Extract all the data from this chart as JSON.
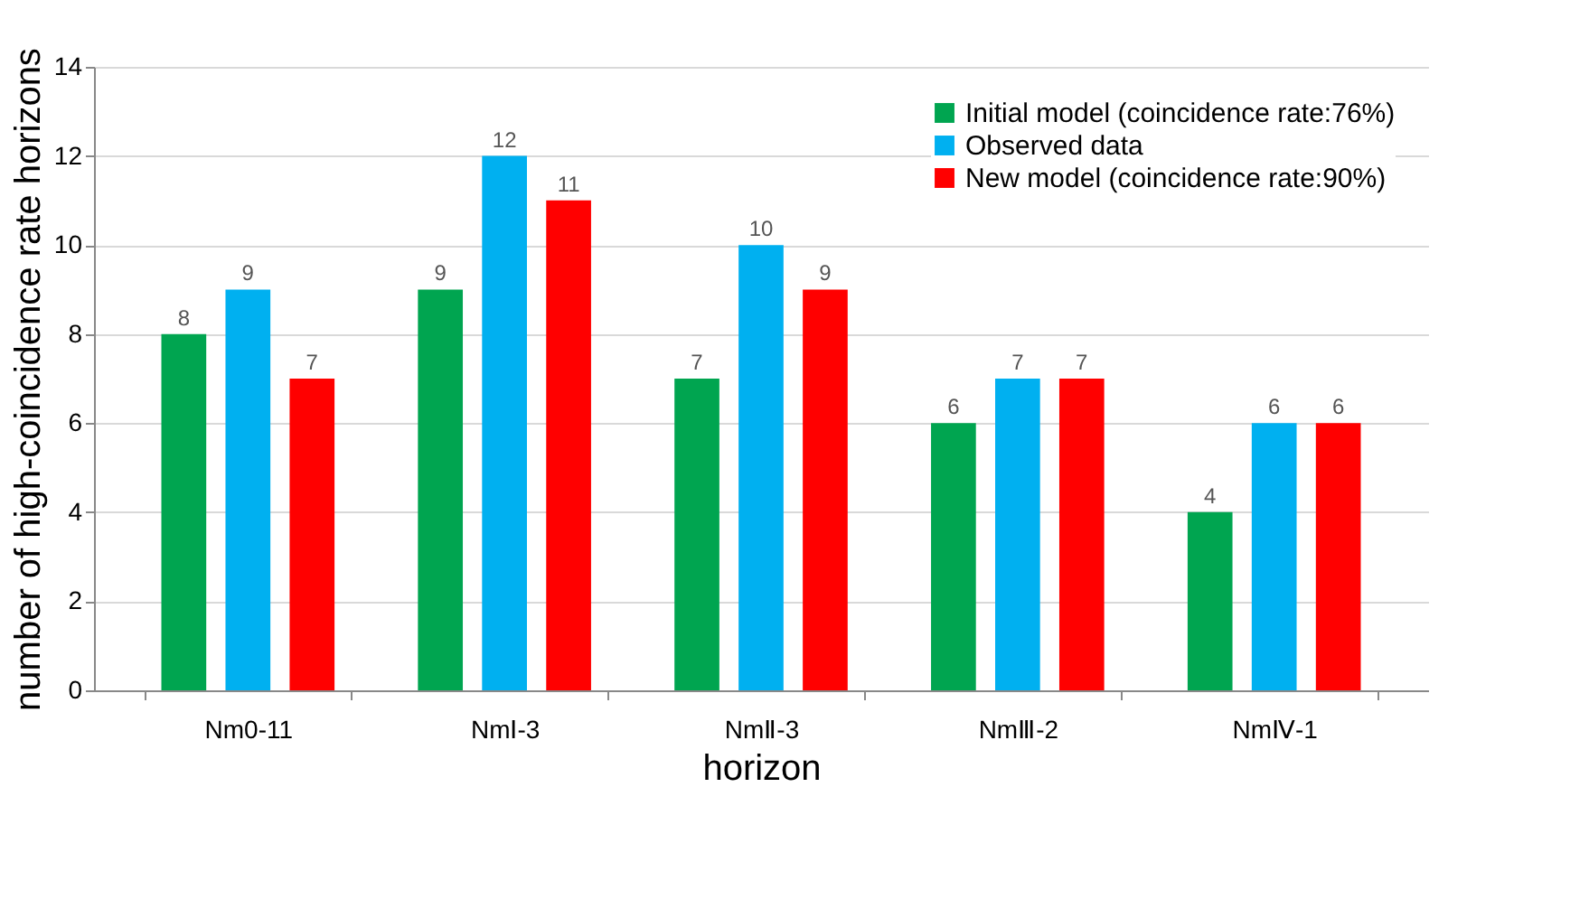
{
  "chart_data": {
    "type": "bar",
    "xlabel": "horizon",
    "ylabel": "number of high-coincidence rate horizons",
    "categories": [
      "Nm0-11",
      "NmⅠ-3",
      "NmⅡ-3",
      "NmⅢ-2",
      "NmⅣ-1"
    ],
    "series": [
      {
        "name": "Initial model (coincidence rate:76%)",
        "color": "#00a550",
        "values": [
          8,
          9,
          7,
          6,
          4
        ]
      },
      {
        "name": "Observed data",
        "color": "#00b0f0",
        "values": [
          9,
          12,
          10,
          7,
          6
        ]
      },
      {
        "name": "New model  (coincidence rate:90%)",
        "color": "#ff0000",
        "values": [
          7,
          11,
          9,
          7,
          6
        ]
      }
    ],
    "ylim": [
      0,
      14
    ],
    "yticks": [
      0,
      2,
      4,
      6,
      8,
      10,
      12,
      14
    ],
    "grid": "y",
    "legend": "top right",
    "data_labels": true
  }
}
